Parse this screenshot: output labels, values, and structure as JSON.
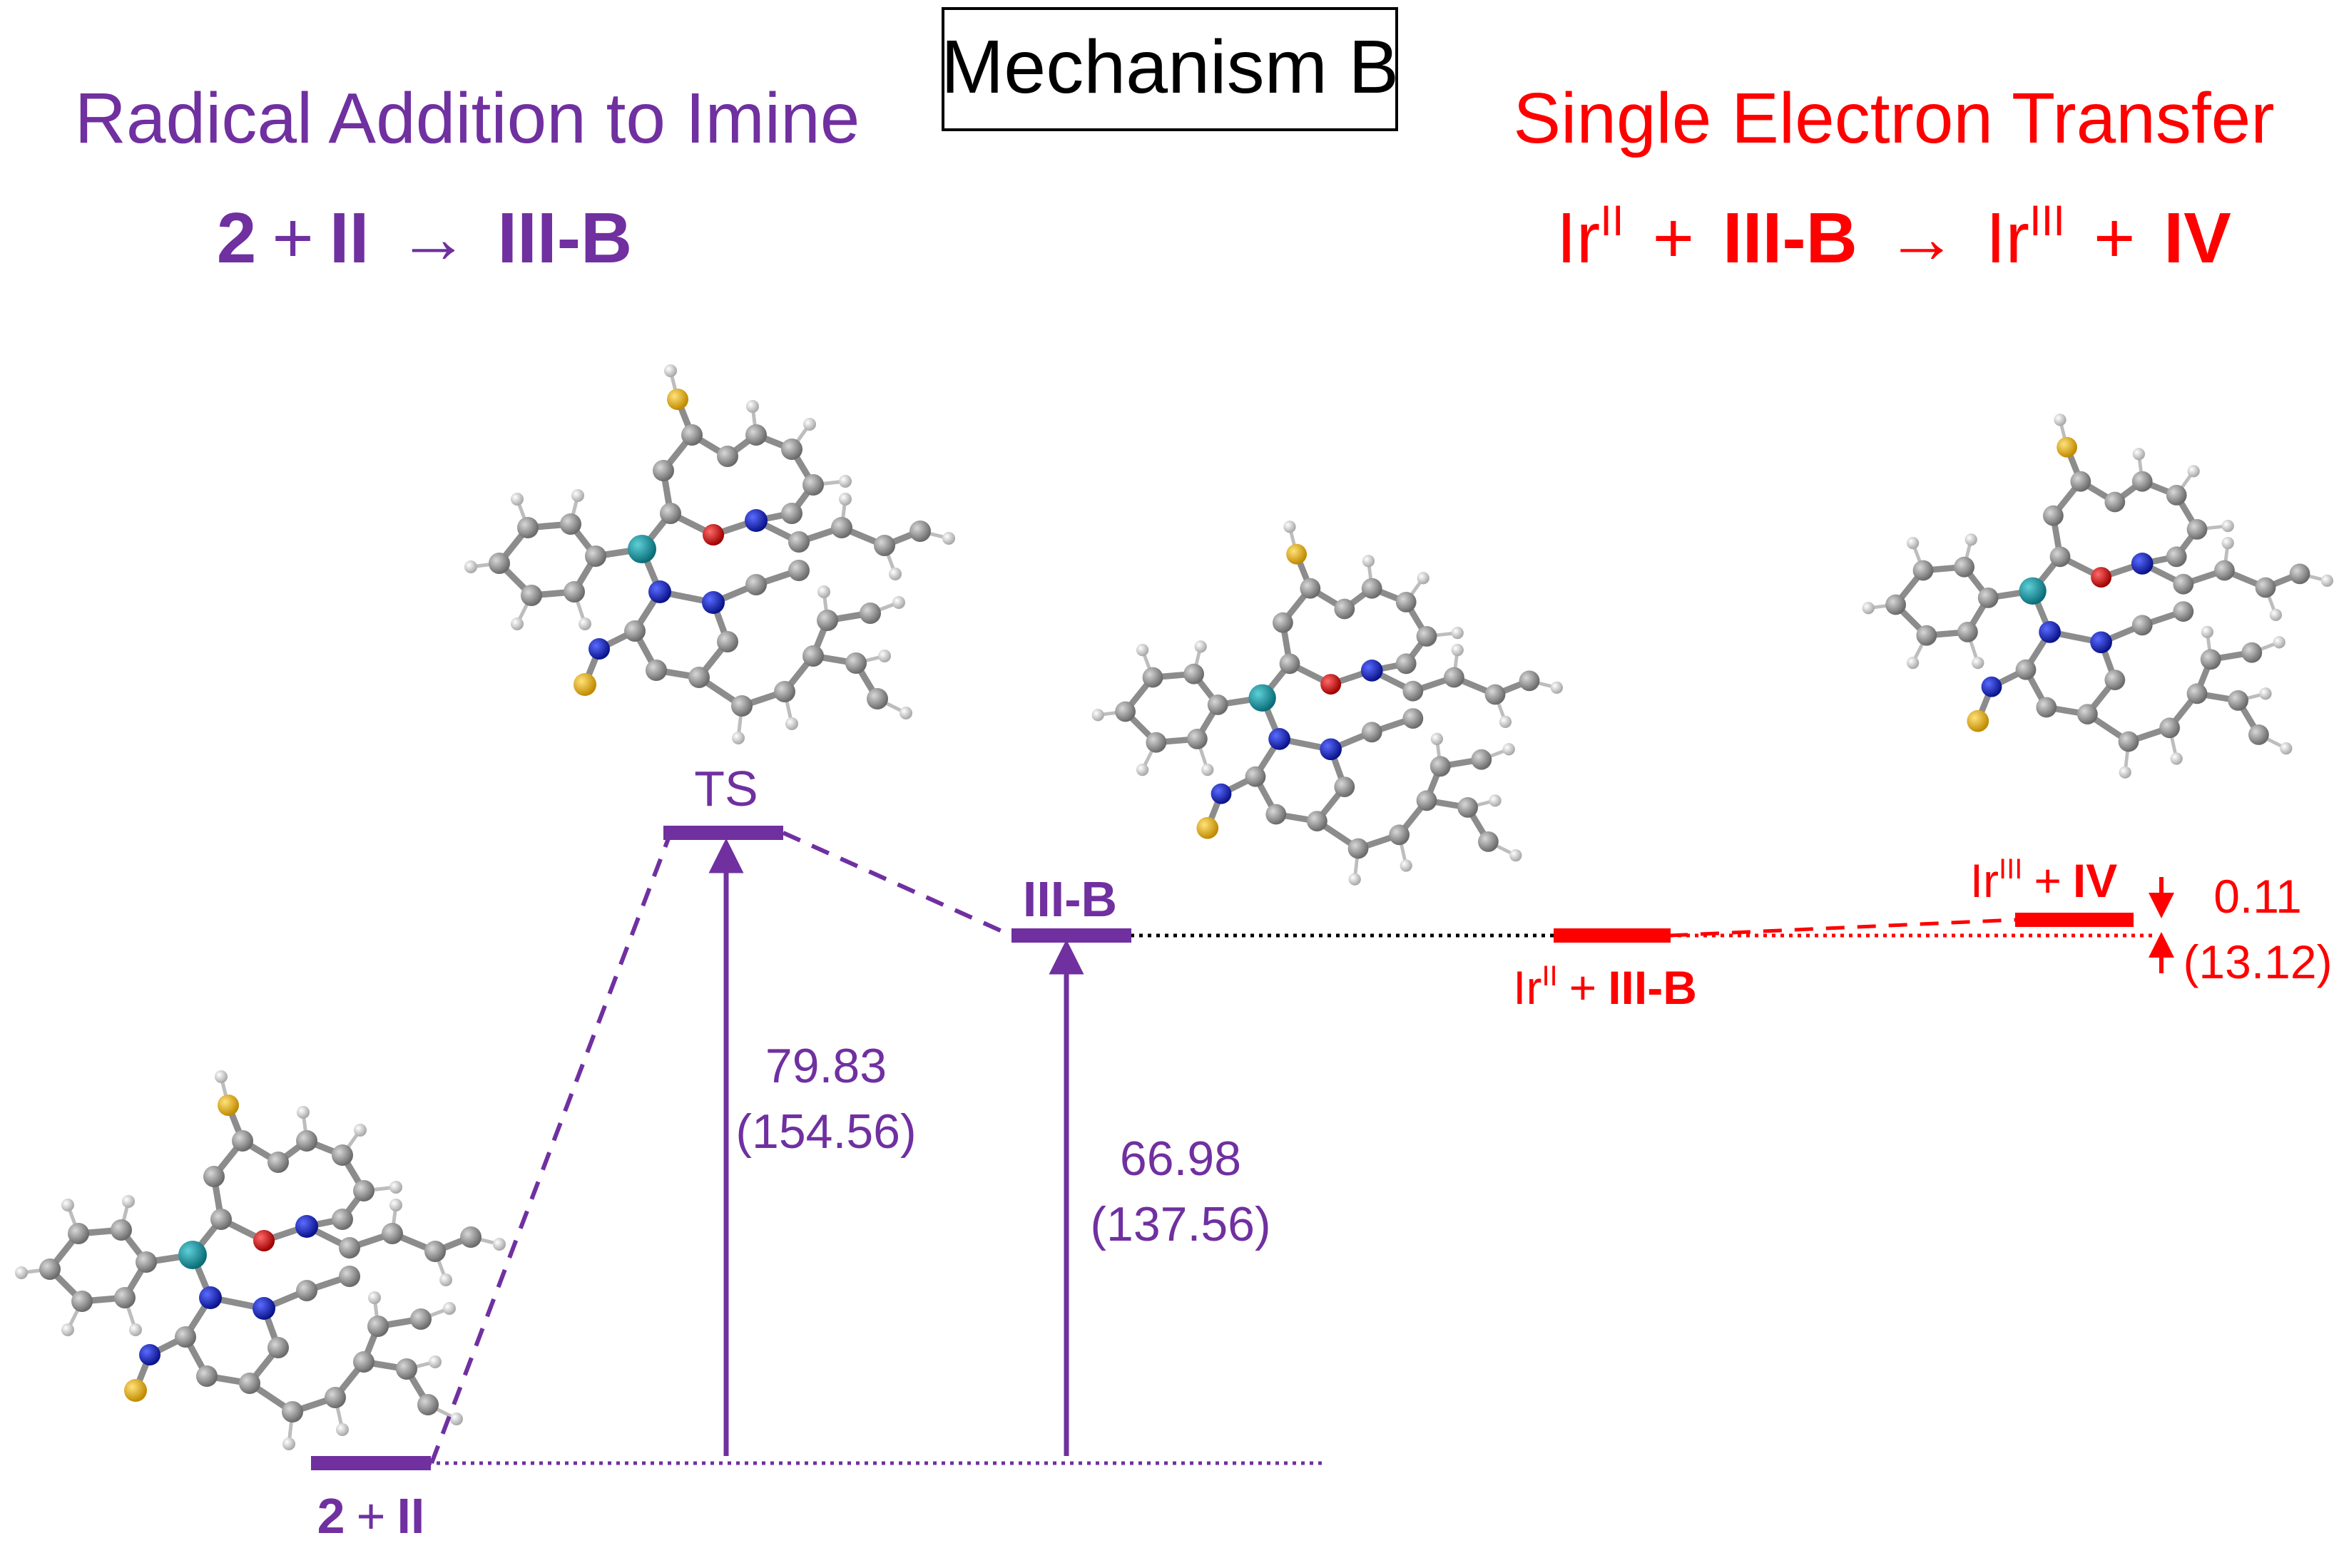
{
  "title_box": {
    "label": "Mechanism B"
  },
  "left": {
    "heading": "Radical Addition to Imine",
    "equation": {
      "reactant_a": "2",
      "plus": "+",
      "reactant_b": "II",
      "arrow": "→",
      "product": "III-B"
    }
  },
  "right": {
    "heading": "Single Electron Transfer",
    "equation": {
      "ir_left": "Ir",
      "ir_left_sup": "II",
      "plus1": "+",
      "reactant": "III-B",
      "arrow": "→",
      "ir_right": "Ir",
      "ir_right_sup": "III",
      "plus2": "+",
      "product": "IV"
    }
  },
  "levels": {
    "start": {
      "label_a": "2",
      "label_plus": "+",
      "label_b": "II"
    },
    "ts": {
      "label": "TS"
    },
    "iiib": {
      "label": "III-B"
    },
    "set_reactant": {
      "ir": "Ir",
      "ir_sup": "II",
      "plus": "+",
      "species": "III-B"
    },
    "set_product": {
      "ir": "Ir",
      "ir_sup": "III",
      "plus": "+",
      "species": "IV"
    }
  },
  "energies": {
    "ts": {
      "value": "79.83",
      "paren": "(154.56)"
    },
    "iiib": {
      "value": "66.98",
      "paren": "(137.56)"
    },
    "set": {
      "value": "0.11",
      "paren": "(13.12)"
    }
  },
  "colors": {
    "purple": "#7030A0",
    "red": "#FF0000",
    "black": "#000000"
  }
}
